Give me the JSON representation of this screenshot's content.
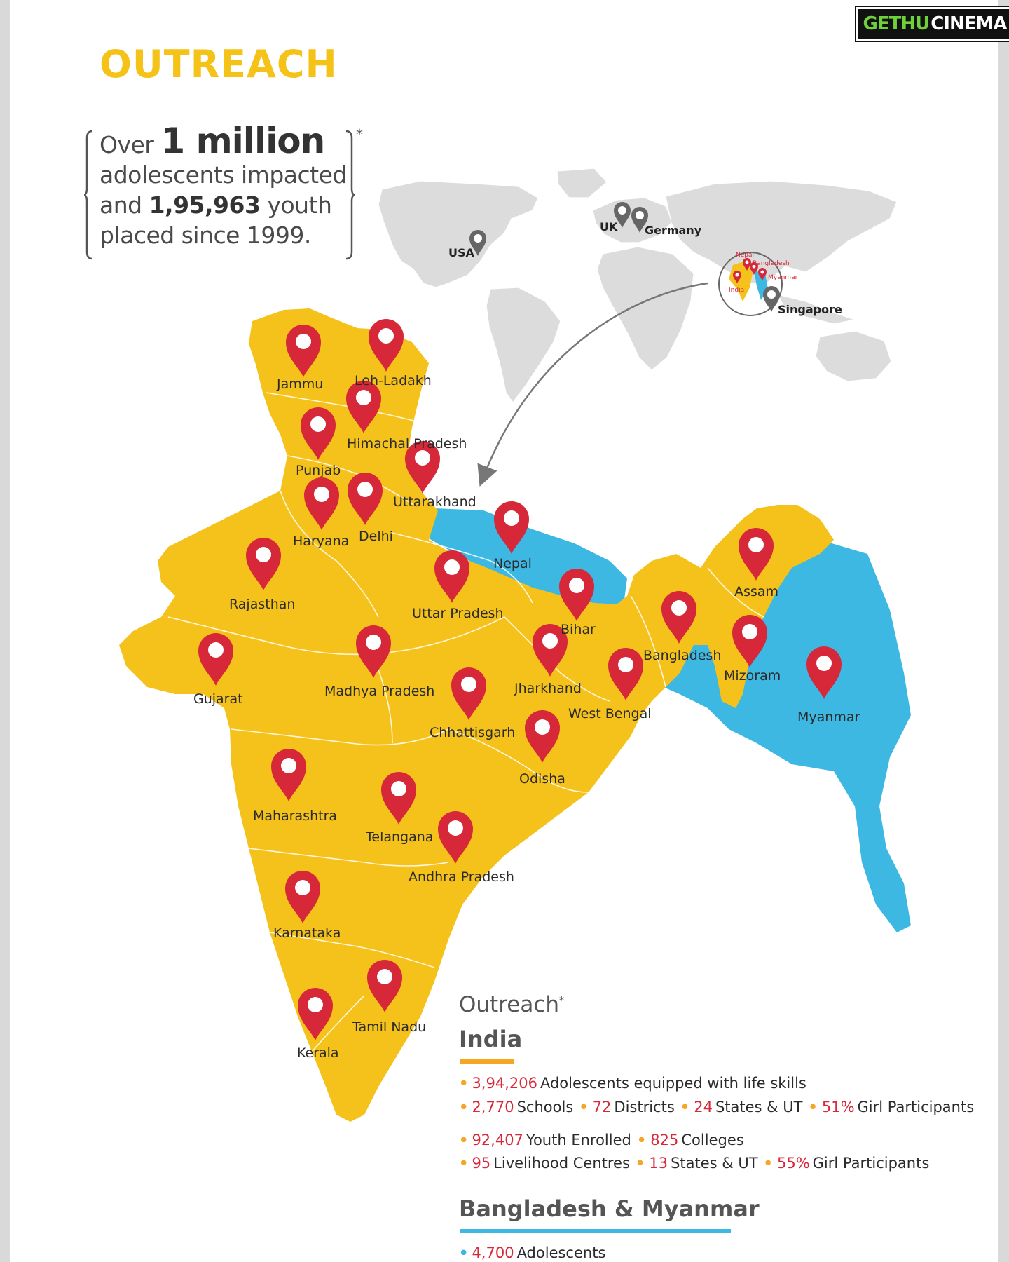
{
  "watermark": {
    "part1": "GETHU",
    "part2": "CINEMA"
  },
  "title": "OUTREACH",
  "impact": {
    "over": "Over",
    "million": "1 million",
    "line2": "adolescents impacted",
    "and": "and",
    "youth_count": "1,95,963",
    "youth": "youth",
    "line4": "placed since 1999.",
    "asterisk": "*"
  },
  "colors": {
    "india": "#f5c21b",
    "neighbors": "#3cb8e3",
    "pin": "#d62839",
    "world": "#dcdcdc",
    "accent": "#f5c217"
  },
  "world_pins": [
    {
      "id": "usa",
      "label": "USA"
    },
    {
      "id": "uk",
      "label": "UK"
    },
    {
      "id": "germany",
      "label": "Germany"
    },
    {
      "id": "singapore",
      "label": "Singapore"
    }
  ],
  "inset_labels": {
    "nepal": "Nepal",
    "bangladesh": "Bangladesh",
    "myanmar": "Myanmar",
    "india": "India"
  },
  "region_pins": [
    {
      "id": "jammu",
      "label": "Jammu"
    },
    {
      "id": "leh",
      "label": "Leh-Ladakh"
    },
    {
      "id": "himachal",
      "label": "Himachal Pradesh"
    },
    {
      "id": "punjab",
      "label": "Punjab"
    },
    {
      "id": "uttarakhand",
      "label": "Uttarakhand"
    },
    {
      "id": "haryana",
      "label": "Haryana"
    },
    {
      "id": "delhi",
      "label": "Delhi"
    },
    {
      "id": "nepal",
      "label": "Nepal"
    },
    {
      "id": "assam",
      "label": "Assam"
    },
    {
      "id": "rajasthan",
      "label": "Rajasthan"
    },
    {
      "id": "up",
      "label": "Uttar Pradesh"
    },
    {
      "id": "bihar",
      "label": "Bihar"
    },
    {
      "id": "bangladesh",
      "label": "Bangladesh"
    },
    {
      "id": "mizoram",
      "label": "Mizoram"
    },
    {
      "id": "gujarat",
      "label": "Gujarat"
    },
    {
      "id": "mp",
      "label": "Madhya Pradesh"
    },
    {
      "id": "jharkhand",
      "label": "Jharkhand"
    },
    {
      "id": "wb",
      "label": "West Bengal"
    },
    {
      "id": "myanmar",
      "label": "Myanmar"
    },
    {
      "id": "chhattisgarh",
      "label": "Chhattisgarh"
    },
    {
      "id": "odisha",
      "label": "Odisha"
    },
    {
      "id": "maharashtra",
      "label": "Maharashtra"
    },
    {
      "id": "telangana",
      "label": "Telangana"
    },
    {
      "id": "ap",
      "label": "Andhra Pradesh"
    },
    {
      "id": "karnataka",
      "label": "Karnataka"
    },
    {
      "id": "tn",
      "label": "Tamil Nadu"
    },
    {
      "id": "kerala",
      "label": "Kerala"
    }
  ],
  "stats": {
    "heading": "Outreach",
    "heading_mark": "*",
    "india_title": "India",
    "india_rows": [
      [
        {
          "num": "3,94,206",
          "text": "Adolescents equipped with life skills"
        }
      ],
      [
        {
          "num": "2,770",
          "text": "Schools"
        },
        {
          "num": "72",
          "text": "Districts"
        },
        {
          "num": "24",
          "text": "States & UT"
        },
        {
          "num": "51%",
          "text": "Girl Participants"
        }
      ],
      [
        {
          "num": "92,407",
          "text": "Youth Enrolled"
        },
        {
          "num": "825",
          "text": "Colleges"
        }
      ],
      [
        {
          "num": "95",
          "text": "Livelihood Centres"
        },
        {
          "num": "13",
          "text": "States & UT"
        },
        {
          "num": "55%",
          "text": "Girl Participants"
        }
      ]
    ],
    "bm_title": "Bangladesh & Myanmar",
    "bm_rows": [
      [
        {
          "num": "4,700",
          "text": "Adolescents"
        }
      ]
    ]
  }
}
